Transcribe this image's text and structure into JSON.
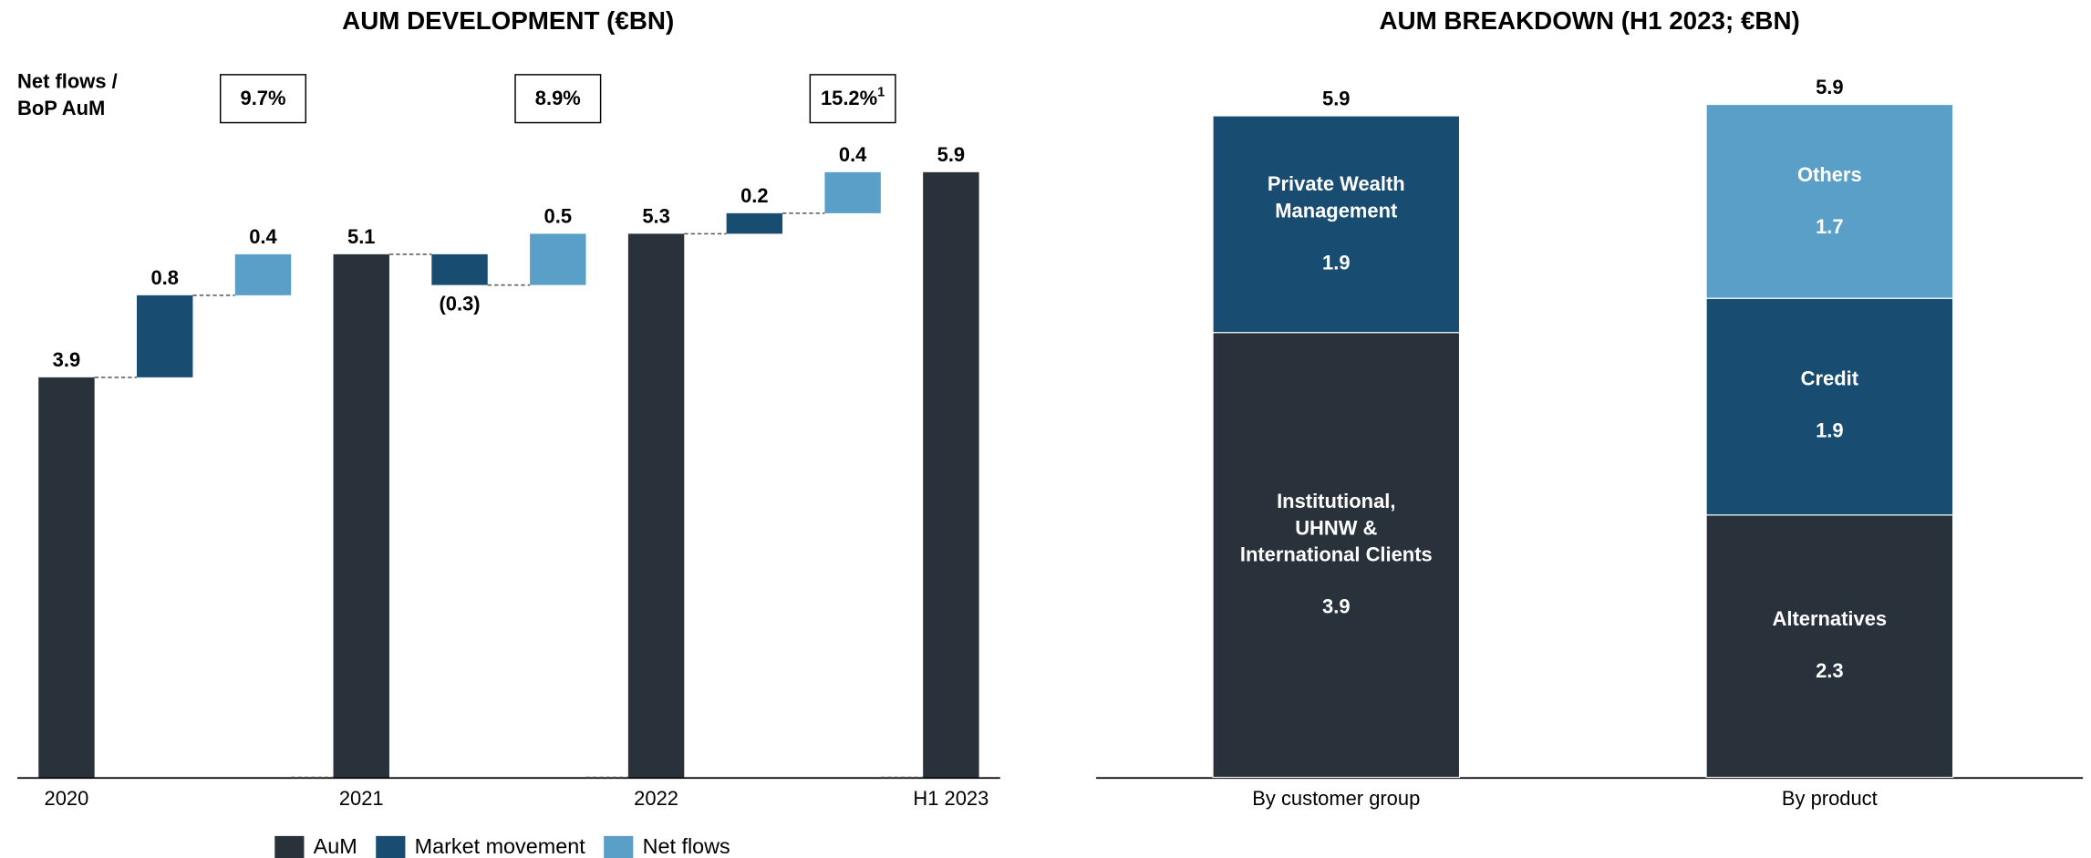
{
  "chart_data": [
    {
      "type": "waterfall",
      "title": "AUM DEVELOPMENT (€BN)",
      "categories": [
        "2020",
        null,
        null,
        "2021",
        null,
        null,
        "2022",
        null,
        null,
        "H1 2023"
      ],
      "series": [
        {
          "name": "AuM",
          "color": "#29313b",
          "values": [
            3.9,
            null,
            null,
            5.1,
            null,
            null,
            5.3,
            null,
            null,
            5.9
          ]
        },
        {
          "name": "Market movement",
          "color": "#184c70",
          "values": [
            null,
            0.8,
            null,
            null,
            -0.3,
            null,
            null,
            0.2,
            null,
            null
          ],
          "value_labels": [
            null,
            "0.8",
            null,
            null,
            "(0.3)",
            null,
            null,
            "0.2",
            null,
            null
          ]
        },
        {
          "name": "Net flows",
          "color": "#5a9fc8",
          "values": [
            null,
            null,
            0.4,
            null,
            null,
            0.5,
            null,
            null,
            0.4,
            null
          ]
        }
      ],
      "ylim": [
        0,
        6.5
      ],
      "net_flows_ratio": {
        "label": "Net flows /\nBoP AuM",
        "values": [
          "9.7%",
          "8.9%",
          "15.2%"
        ],
        "footnote": "1"
      },
      "legend": "bottom"
    },
    {
      "type": "stacked_bar",
      "title": "AUM BREAKDOWN (H1 2023; €BN)",
      "ylim": [
        0,
        6.5
      ],
      "stacks": [
        {
          "category": "By customer group",
          "total": 5.9,
          "segments": [
            {
              "name": "Institutional,\nUHNW &\nInternational Clients",
              "color": "#29313b",
              "value": 3.9
            },
            {
              "name": "Private Wealth\nManagement",
              "color": "#184c70",
              "value": 1.9
            }
          ]
        },
        {
          "category": "By product",
          "total": 5.9,
          "segments": [
            {
              "name": "Alternatives",
              "color": "#29313b",
              "value": 2.3
            },
            {
              "name": "Credit",
              "color": "#184c70",
              "value": 1.9
            },
            {
              "name": "Others",
              "color": "#5a9fc8",
              "value": 1.7
            }
          ]
        }
      ]
    }
  ]
}
